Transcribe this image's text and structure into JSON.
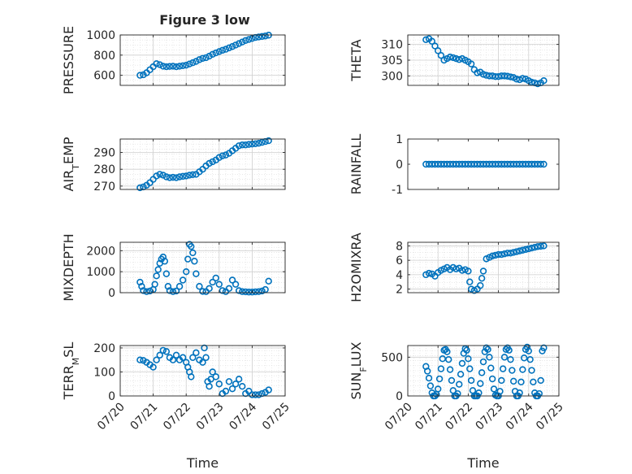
{
  "figure_title": "Figure 3 low",
  "colors": {
    "marker": "#0072BD",
    "axes": "#262626",
    "grid": "#dcdcdc",
    "panel": "#ffffff"
  },
  "chart_data": [
    {
      "type": "scatter",
      "title": "Figure 3 low",
      "ylabel": "PRESSURE",
      "xlabel": "",
      "ylim": [
        500,
        1000
      ],
      "yticks": [
        600,
        800,
        1000
      ],
      "xlim": [
        0,
        5
      ],
      "xticks": [
        0,
        1,
        2,
        3,
        4,
        5
      ],
      "xticklabels": [],
      "grid": true,
      "marker": "open-circle",
      "x": [
        0.6,
        0.7,
        0.8,
        0.9,
        1.0,
        1.1,
        1.2,
        1.3,
        1.4,
        1.5,
        1.6,
        1.7,
        1.8,
        1.9,
        2.0,
        2.1,
        2.2,
        2.3,
        2.4,
        2.5,
        2.6,
        2.7,
        2.8,
        2.9,
        3.0,
        3.1,
        3.2,
        3.3,
        3.4,
        3.5,
        3.6,
        3.7,
        3.8,
        3.9,
        4.0,
        4.1,
        4.2,
        4.3,
        4.4,
        4.5
      ],
      "y": [
        600,
        605,
        625,
        655,
        685,
        715,
        705,
        690,
        685,
        688,
        690,
        685,
        690,
        695,
        700,
        712,
        725,
        738,
        755,
        768,
        775,
        790,
        808,
        822,
        835,
        848,
        858,
        872,
        885,
        900,
        915,
        930,
        945,
        955,
        965,
        975,
        980,
        985,
        990,
        998
      ]
    },
    {
      "type": "scatter",
      "ylabel": "THETA",
      "xlabel": "",
      "ylim": [
        297,
        313
      ],
      "yticks": [
        300,
        305,
        310
      ],
      "xlim": [
        0,
        5
      ],
      "xticks": [
        0,
        1,
        2,
        3,
        4,
        5
      ],
      "xticklabels": [],
      "grid": true,
      "marker": "open-circle",
      "x": [
        0.6,
        0.7,
        0.8,
        0.9,
        1.0,
        1.1,
        1.2,
        1.3,
        1.4,
        1.5,
        1.6,
        1.7,
        1.8,
        1.9,
        2.0,
        2.1,
        2.2,
        2.3,
        2.4,
        2.5,
        2.6,
        2.7,
        2.8,
        2.9,
        3.0,
        3.1,
        3.2,
        3.3,
        3.4,
        3.5,
        3.6,
        3.7,
        3.8,
        3.9,
        4.0,
        4.1,
        4.2,
        4.3,
        4.4,
        4.5
      ],
      "y": [
        311.5,
        311.8,
        311.0,
        309.5,
        308.0,
        306.5,
        305.0,
        305.5,
        306.0,
        305.8,
        305.5,
        305.2,
        305.5,
        305.0,
        304.5,
        303.8,
        302.0,
        301.0,
        301.2,
        300.5,
        300.2,
        300.0,
        300.0,
        299.8,
        299.8,
        300.0,
        300.0,
        299.9,
        299.7,
        299.5,
        299.0,
        298.8,
        299.2,
        299.0,
        298.5,
        298.0,
        297.8,
        297.5,
        297.8,
        298.5
      ]
    },
    {
      "type": "scatter",
      "ylabel": "AIR_TEMP",
      "xlabel": "",
      "ylim": [
        268,
        298
      ],
      "yticks": [
        270,
        280,
        290
      ],
      "xlim": [
        0,
        5
      ],
      "xticks": [
        0,
        1,
        2,
        3,
        4,
        5
      ],
      "xticklabels": [],
      "grid": true,
      "marker": "open-circle",
      "x": [
        0.6,
        0.7,
        0.8,
        0.9,
        1.0,
        1.1,
        1.2,
        1.3,
        1.4,
        1.5,
        1.6,
        1.7,
        1.8,
        1.9,
        2.0,
        2.1,
        2.2,
        2.3,
        2.4,
        2.5,
        2.6,
        2.7,
        2.8,
        2.9,
        3.0,
        3.1,
        3.2,
        3.3,
        3.4,
        3.5,
        3.6,
        3.7,
        3.8,
        3.9,
        4.0,
        4.1,
        4.2,
        4.3,
        4.4,
        4.5
      ],
      "y": [
        269.0,
        269.5,
        270.5,
        272.0,
        274.0,
        276.0,
        277.0,
        276.5,
        275.5,
        275.0,
        275.2,
        275.0,
        275.5,
        275.8,
        276.0,
        276.5,
        276.8,
        277.0,
        278.5,
        280.0,
        282.0,
        283.5,
        284.5,
        285.5,
        287.0,
        288.0,
        288.5,
        289.5,
        291.0,
        292.5,
        294.0,
        294.5,
        294.5,
        294.8,
        295.0,
        295.2,
        295.5,
        296.0,
        296.5,
        297.0
      ]
    },
    {
      "type": "scatter",
      "ylabel": "RAINFALL",
      "xlabel": "",
      "ylim": [
        -1,
        1
      ],
      "yticks": [
        -1,
        0,
        1
      ],
      "xlim": [
        0,
        5
      ],
      "xticks": [
        0,
        1,
        2,
        3,
        4,
        5
      ],
      "xticklabels": [],
      "grid": false,
      "marker": "open-circle",
      "x": [
        0.6,
        0.7,
        0.8,
        0.9,
        1.0,
        1.1,
        1.2,
        1.3,
        1.4,
        1.5,
        1.6,
        1.7,
        1.8,
        1.9,
        2.0,
        2.1,
        2.2,
        2.3,
        2.4,
        2.5,
        2.6,
        2.7,
        2.8,
        2.9,
        3.0,
        3.1,
        3.2,
        3.3,
        3.4,
        3.5,
        3.6,
        3.7,
        3.8,
        3.9,
        4.0,
        4.1,
        4.2,
        4.3,
        4.4,
        4.5
      ],
      "y": [
        0,
        0,
        0,
        0,
        0,
        0,
        0,
        0,
        0,
        0,
        0,
        0,
        0,
        0,
        0,
        0,
        0,
        0,
        0,
        0,
        0,
        0,
        0,
        0,
        0,
        0,
        0,
        0,
        0,
        0,
        0,
        0,
        0,
        0,
        0,
        0,
        0,
        0,
        0,
        0
      ]
    },
    {
      "type": "scatter",
      "ylabel": "MIXDEPTH",
      "xlabel": "",
      "ylim": [
        0,
        2400
      ],
      "yticks": [
        0,
        1000,
        2000
      ],
      "xlim": [
        0,
        5
      ],
      "xticks": [
        0,
        1,
        2,
        3,
        4,
        5
      ],
      "xticklabels": [],
      "grid": true,
      "marker": "open-circle",
      "x": [
        0.6,
        0.65,
        0.7,
        0.8,
        0.9,
        1.0,
        1.05,
        1.1,
        1.15,
        1.2,
        1.25,
        1.3,
        1.35,
        1.4,
        1.45,
        1.5,
        1.6,
        1.7,
        1.8,
        1.9,
        2.0,
        2.05,
        2.1,
        2.15,
        2.2,
        2.25,
        2.3,
        2.4,
        2.5,
        2.6,
        2.7,
        2.8,
        2.9,
        3.0,
        3.1,
        3.2,
        3.3,
        3.4,
        3.5,
        3.6,
        3.7,
        3.8,
        3.9,
        4.0,
        4.1,
        4.2,
        4.3,
        4.4,
        4.5
      ],
      "y": [
        500,
        300,
        100,
        50,
        80,
        150,
        400,
        800,
        1100,
        1400,
        1600,
        1700,
        1500,
        900,
        300,
        100,
        50,
        80,
        300,
        600,
        1000,
        1600,
        2300,
        2200,
        1900,
        1500,
        900,
        300,
        60,
        50,
        200,
        500,
        700,
        400,
        100,
        50,
        200,
        600,
        400,
        100,
        50,
        40,
        30,
        30,
        40,
        50,
        80,
        150,
        550
      ]
    },
    {
      "type": "scatter",
      "ylabel": "H2OMIXRA",
      "xlabel": "",
      "ylim": [
        1.5,
        8.5
      ],
      "yticks": [
        2,
        4,
        6,
        8
      ],
      "xlim": [
        0,
        5
      ],
      "xticks": [
        0,
        1,
        2,
        3,
        4,
        5
      ],
      "xticklabels": [],
      "grid": true,
      "marker": "open-circle",
      "x": [
        0.6,
        0.7,
        0.8,
        0.9,
        1.0,
        1.1,
        1.2,
        1.3,
        1.4,
        1.5,
        1.6,
        1.7,
        1.8,
        1.9,
        2.0,
        2.05,
        2.1,
        2.2,
        2.3,
        2.4,
        2.45,
        2.5,
        2.6,
        2.7,
        2.8,
        2.9,
        3.0,
        3.1,
        3.2,
        3.3,
        3.4,
        3.5,
        3.6,
        3.7,
        3.8,
        3.9,
        4.0,
        4.1,
        4.2,
        4.3,
        4.4,
        4.5
      ],
      "y": [
        4.0,
        4.2,
        4.1,
        3.8,
        4.3,
        4.6,
        4.8,
        5.0,
        4.7,
        5.0,
        4.8,
        4.9,
        4.6,
        4.7,
        4.5,
        3.0,
        2.0,
        1.8,
        2.0,
        2.5,
        3.5,
        4.5,
        6.2,
        6.4,
        6.6,
        6.7,
        6.8,
        6.8,
        6.9,
        7.0,
        7.0,
        7.1,
        7.2,
        7.3,
        7.4,
        7.5,
        7.6,
        7.7,
        7.8,
        7.9,
        7.95,
        8.0
      ]
    },
    {
      "type": "scatter",
      "ylabel": "TERR_MSL",
      "xlabel": "Time",
      "ylim": [
        0,
        210
      ],
      "yticks": [
        0,
        100,
        200
      ],
      "xlim": [
        0,
        5
      ],
      "xticks": [
        0,
        1,
        2,
        3,
        4,
        5
      ],
      "xticklabels": [
        "07/20",
        "07/21",
        "07/22",
        "07/23",
        "07/24",
        "07/25"
      ],
      "grid": true,
      "marker": "open-circle",
      "x": [
        0.6,
        0.7,
        0.8,
        0.9,
        1.0,
        1.1,
        1.2,
        1.3,
        1.4,
        1.5,
        1.6,
        1.7,
        1.8,
        1.9,
        2.0,
        2.05,
        2.1,
        2.15,
        2.2,
        2.3,
        2.4,
        2.5,
        2.55,
        2.6,
        2.65,
        2.7,
        2.75,
        2.8,
        2.9,
        3.0,
        3.1,
        3.2,
        3.3,
        3.4,
        3.5,
        3.6,
        3.7,
        3.8,
        3.9,
        4.0,
        4.1,
        4.2,
        4.3,
        4.4,
        4.5
      ],
      "y": [
        150,
        148,
        140,
        130,
        120,
        150,
        170,
        190,
        185,
        160,
        150,
        170,
        150,
        160,
        140,
        120,
        100,
        80,
        160,
        180,
        150,
        140,
        200,
        160,
        60,
        40,
        70,
        100,
        80,
        50,
        10,
        20,
        60,
        30,
        50,
        70,
        40,
        10,
        20,
        5,
        5,
        5,
        10,
        15,
        25
      ]
    },
    {
      "type": "scatter",
      "ylabel": "SUN_FLUX",
      "xlabel": "Time",
      "ylim": [
        0,
        650
      ],
      "yticks": [
        0,
        500
      ],
      "xlim": [
        0,
        5
      ],
      "xticks": [
        0,
        1,
        2,
        3,
        4,
        5
      ],
      "xticklabels": [
        "07/20",
        "07/21",
        "07/22",
        "07/23",
        "07/24",
        "07/25"
      ],
      "grid": true,
      "marker": "open-circle",
      "x": [
        0.6,
        0.65,
        0.7,
        0.75,
        0.8,
        0.85,
        0.9,
        0.95,
        1.0,
        1.05,
        1.1,
        1.15,
        1.2,
        1.25,
        1.3,
        1.35,
        1.4,
        1.45,
        1.5,
        1.55,
        1.6,
        1.65,
        1.7,
        1.75,
        1.8,
        1.85,
        1.9,
        1.95,
        2.0,
        2.05,
        2.1,
        2.15,
        2.2,
        2.25,
        2.3,
        2.35,
        2.4,
        2.45,
        2.5,
        2.55,
        2.6,
        2.65,
        2.7,
        2.75,
        2.8,
        2.85,
        2.9,
        2.95,
        3.0,
        3.05,
        3.1,
        3.15,
        3.2,
        3.25,
        3.3,
        3.35,
        3.4,
        3.45,
        3.5,
        3.55,
        3.6,
        3.65,
        3.7,
        3.75,
        3.8,
        3.85,
        3.9,
        3.95,
        4.0,
        4.05,
        4.1,
        4.15,
        4.2,
        4.25,
        4.3,
        4.35,
        4.4,
        4.45,
        4.5
      ],
      "y": [
        380,
        320,
        230,
        130,
        40,
        0,
        0,
        20,
        90,
        220,
        350,
        480,
        590,
        600,
        570,
        470,
        340,
        200,
        70,
        0,
        0,
        30,
        150,
        280,
        420,
        550,
        610,
        590,
        480,
        350,
        200,
        70,
        0,
        0,
        0,
        40,
        160,
        300,
        440,
        570,
        620,
        600,
        500,
        360,
        220,
        90,
        10,
        0,
        0,
        60,
        200,
        350,
        500,
        600,
        620,
        590,
        470,
        330,
        190,
        60,
        0,
        0,
        40,
        180,
        340,
        490,
        600,
        630,
        580,
        470,
        330,
        180,
        40,
        0,
        0,
        30,
        200,
        580,
        620
      ]
    }
  ]
}
